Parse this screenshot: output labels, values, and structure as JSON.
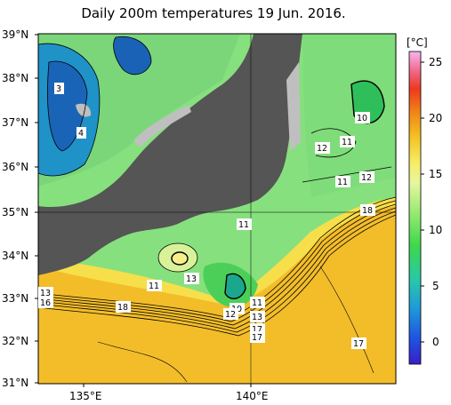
{
  "title": "Daily 200m temperatures 19 Jun. 2016.",
  "lat_labels": [
    "39°N",
    "38°N",
    "37°N",
    "36°N",
    "35°N",
    "34°N",
    "33°N",
    "32°N",
    "31°N"
  ],
  "lon_labels": [
    "135°E",
    "140°E"
  ],
  "colorbar": {
    "unit": "[°C]",
    "ticks": [
      "25",
      "20",
      "15",
      "10",
      "5",
      "0"
    ],
    "range": [
      -2,
      26
    ]
  },
  "contour_labels": [
    {
      "text": "3"
    },
    {
      "text": "4"
    },
    {
      "text": "10"
    },
    {
      "text": "11"
    },
    {
      "text": "12"
    },
    {
      "text": "11"
    },
    {
      "text": "12"
    },
    {
      "text": "18"
    },
    {
      "text": "11"
    },
    {
      "text": "13"
    },
    {
      "text": "11"
    },
    {
      "text": "10"
    },
    {
      "text": "11"
    },
    {
      "text": "12"
    },
    {
      "text": "13"
    },
    {
      "text": "18"
    },
    {
      "text": "13"
    },
    {
      "text": "16"
    },
    {
      "text": "17"
    },
    {
      "text": "17"
    },
    {
      "text": "17"
    }
  ],
  "colors": {
    "land": "#555555",
    "no_data": "#bfbfbf",
    "warm": "#f2b526",
    "mild": "#f7dc45",
    "green": "#7fe07a",
    "cold": "#2f7fd0"
  }
}
